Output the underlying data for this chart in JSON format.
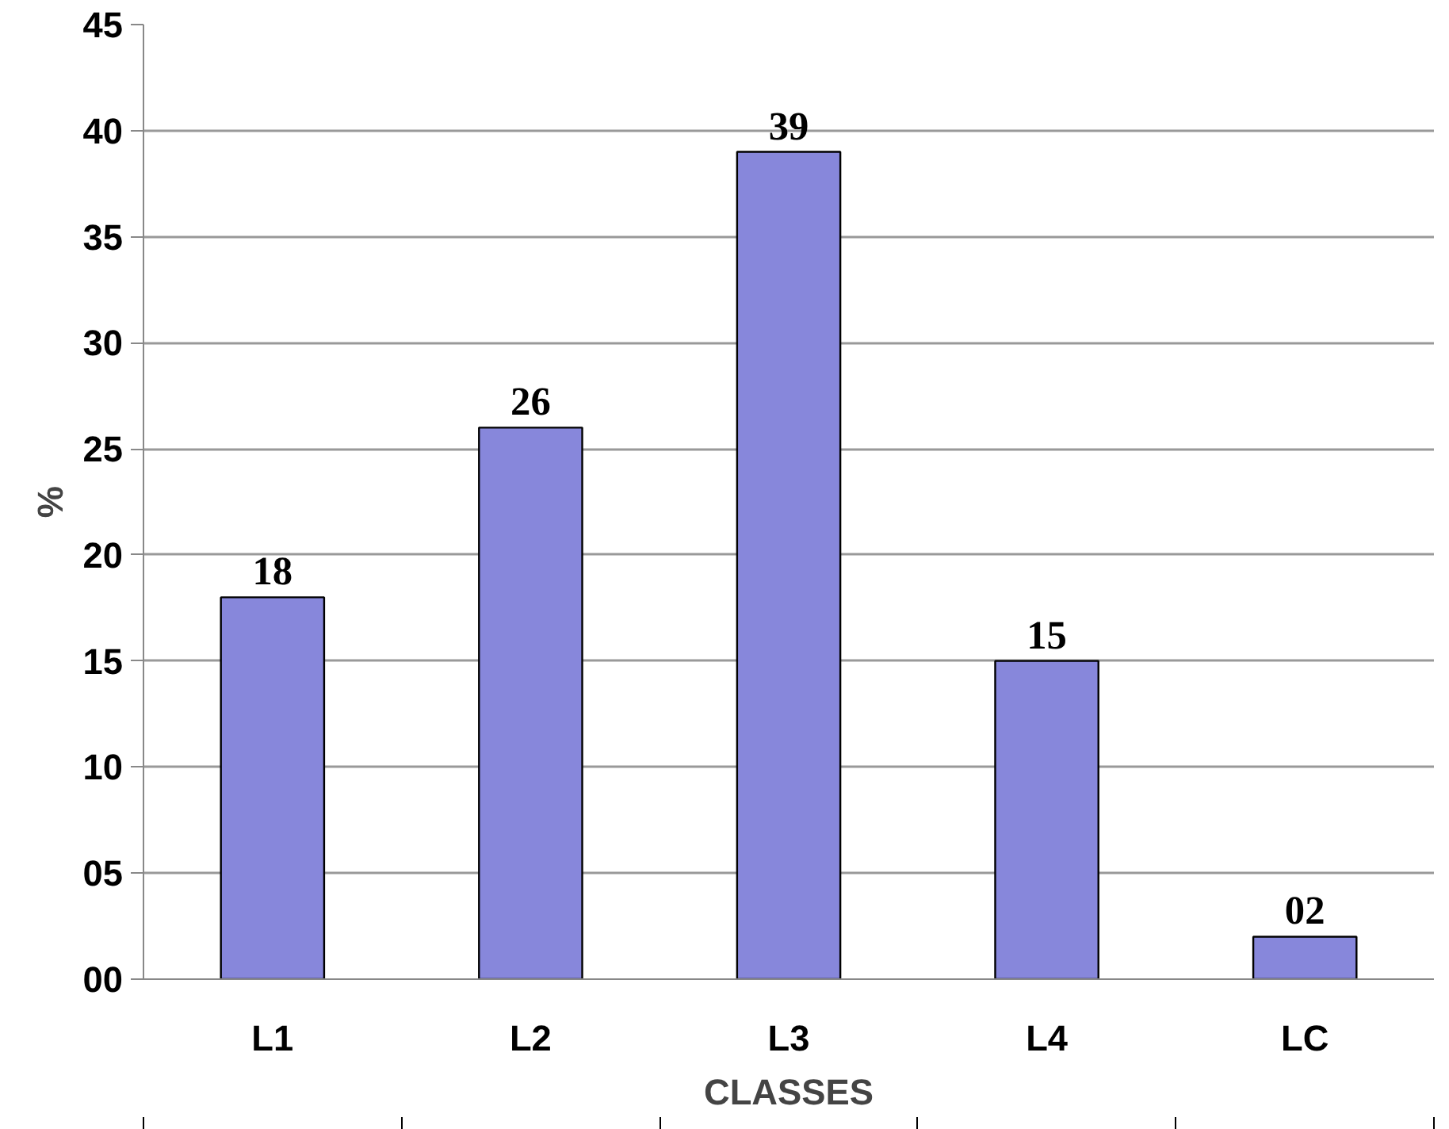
{
  "chart_data": {
    "type": "bar",
    "xlabel": "CLASSES",
    "ylabel": "%",
    "categories": [
      "L1",
      "L2",
      "L3",
      "L4",
      "LC"
    ],
    "values": [
      18,
      26,
      39,
      15,
      2
    ],
    "value_labels": [
      "18",
      "26",
      "39",
      "15",
      "02"
    ],
    "color": "#8787db",
    "ylim": [
      0,
      45
    ],
    "yticks": [
      {
        "value": 0,
        "label": "00"
      },
      {
        "value": 5,
        "label": "05"
      },
      10,
      15,
      20,
      25,
      30,
      35,
      40,
      45
    ],
    "grid": "y"
  }
}
